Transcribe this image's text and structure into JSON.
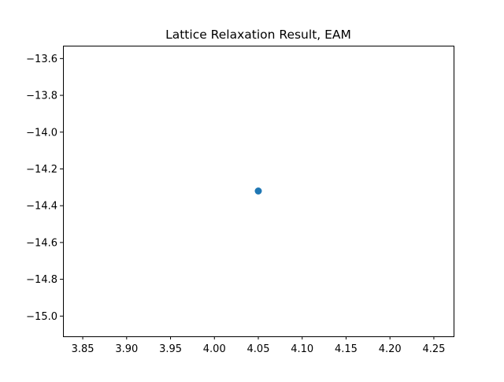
{
  "chart_data": {
    "type": "scatter",
    "title": "Lattice Relaxation Result, EAM",
    "xlabel": "",
    "ylabel": "",
    "xlim": [
      3.8275,
      4.2725
    ],
    "ylim": [
      -15.11,
      -13.53
    ],
    "x_ticks": [
      "3.85",
      "3.90",
      "3.95",
      "4.00",
      "4.05",
      "4.10",
      "4.15",
      "4.20",
      "4.25"
    ],
    "y_ticks": [
      "−13.6",
      "−13.8",
      "−14.0",
      "−14.2",
      "−14.4",
      "−14.6",
      "−14.8",
      "−15.0"
    ],
    "grid": false,
    "points": [
      {
        "x": 4.05,
        "y": -14.32
      }
    ],
    "color": "#1f77b4"
  }
}
